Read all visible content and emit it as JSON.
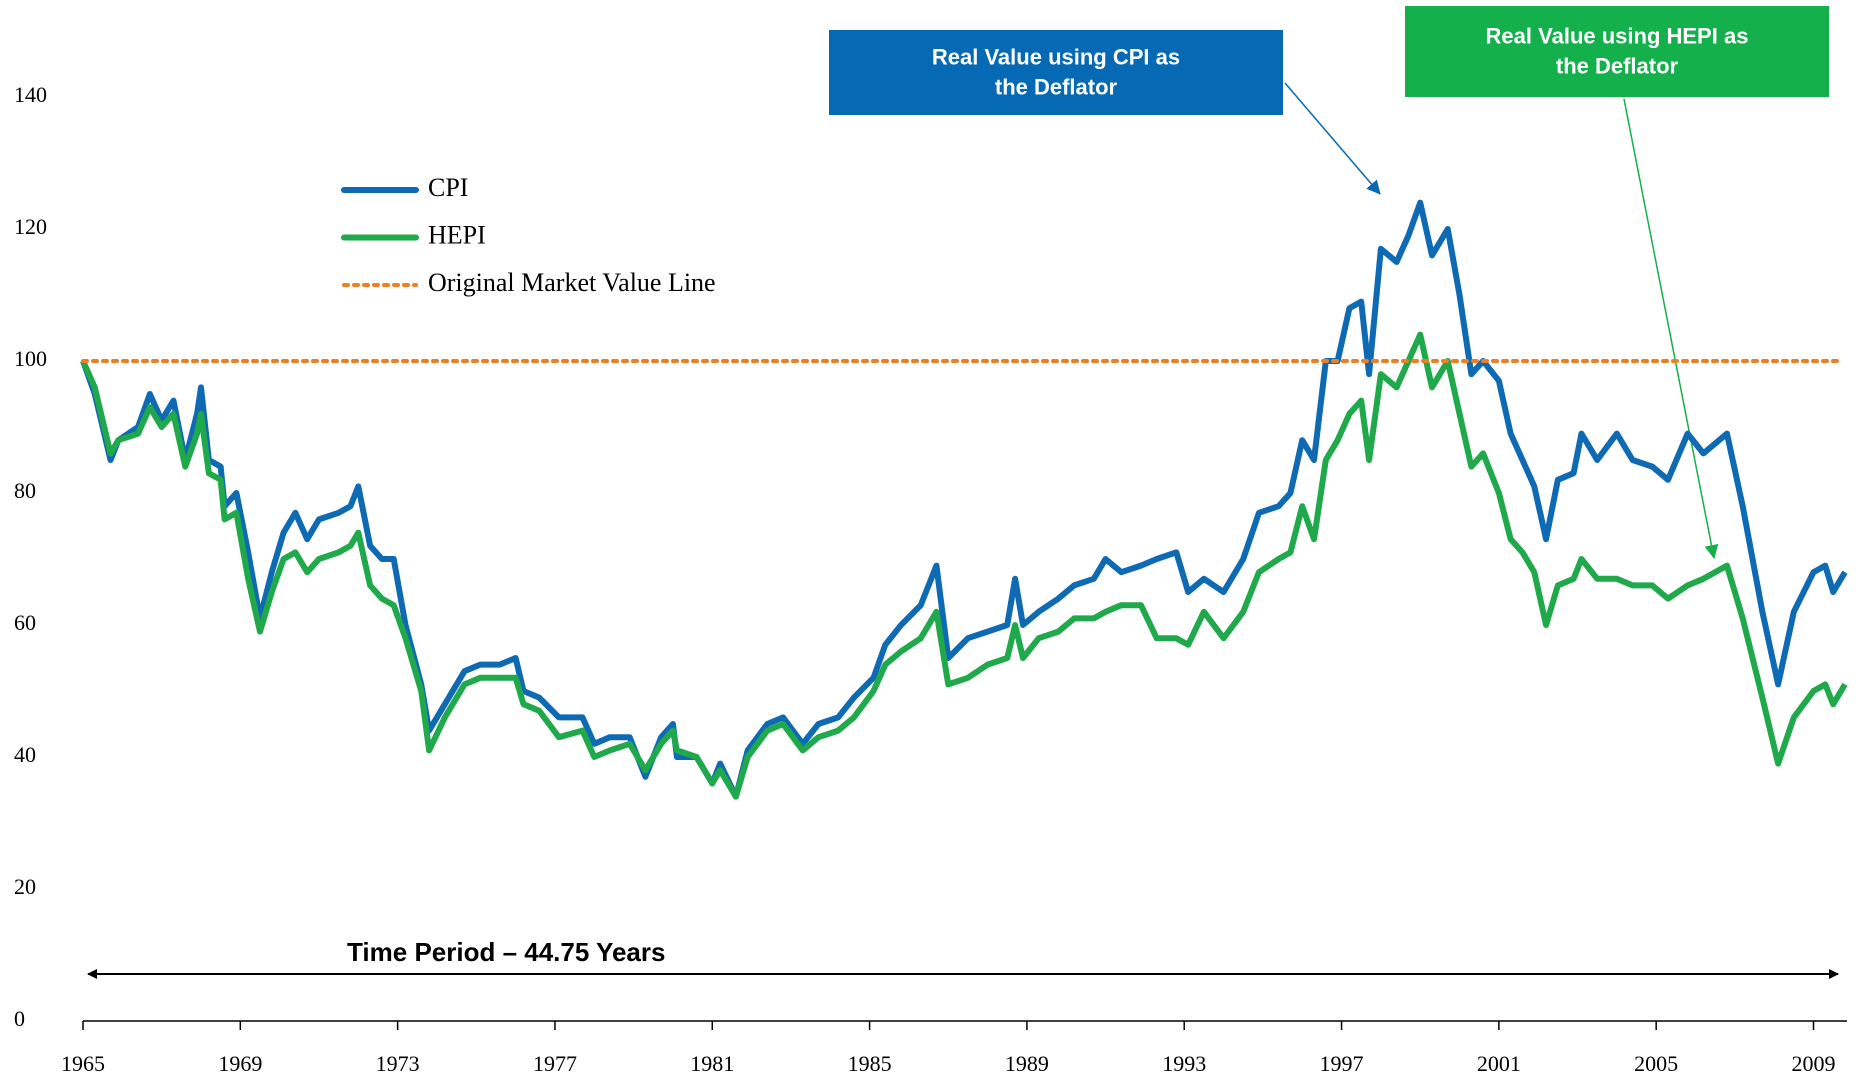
{
  "chart_data": {
    "type": "line",
    "x": [
      1965.0,
      1965.3,
      1965.7,
      1965.9,
      1966.4,
      1966.7,
      1967.0,
      1967.3,
      1967.6,
      1967.9,
      1968.0,
      1968.2,
      1968.5,
      1968.6,
      1968.9,
      1969.2,
      1969.5,
      1969.8,
      1970.1,
      1970.4,
      1970.7,
      1971.0,
      1971.5,
      1971.8,
      1972.0,
      1972.3,
      1972.6,
      1972.9,
      1973.2,
      1973.6,
      1973.8,
      1974.2,
      1974.7,
      1975.1,
      1975.6,
      1976.0,
      1976.2,
      1976.6,
      1977.1,
      1977.7,
      1978.0,
      1978.4,
      1978.9,
      1979.3,
      1979.7,
      1980.0,
      1980.1,
      1980.6,
      1981.0,
      1981.2,
      1981.6,
      1981.9,
      1982.4,
      1982.8,
      1983.3,
      1983.7,
      1984.2,
      1984.6,
      1985.1,
      1985.4,
      1985.8,
      1986.3,
      1986.7,
      1987.0,
      1987.5,
      1988.0,
      1988.5,
      1988.7,
      1988.9,
      1989.3,
      1989.8,
      1990.2,
      1990.7,
      1991.0,
      1991.4,
      1991.9,
      1992.3,
      1992.8,
      1993.1,
      1993.5,
      1994.0,
      1994.5,
      1994.9,
      1995.4,
      1995.7,
      1996.0,
      1996.3,
      1996.6,
      1996.9,
      1997.2,
      1997.5,
      1997.7,
      1998.0,
      1998.4,
      1998.7,
      1999.0,
      1999.3,
      1999.7,
      2000.0,
      2000.3,
      2000.6,
      2001.0,
      2001.3,
      2001.6,
      2001.9,
      2002.2,
      2002.5,
      2002.9,
      2003.1,
      2003.5,
      2004.0,
      2004.4,
      2004.9,
      2005.3,
      2005.8,
      2006.2,
      2006.8,
      2007.2,
      2007.7,
      2008.1,
      2008.5,
      2009.0,
      2009.3,
      2009.5,
      2009.8
    ],
    "series": [
      {
        "name": "CPI",
        "color": "#0f6ab4",
        "values": [
          100,
          95,
          85,
          88,
          90,
          95,
          91,
          94,
          85,
          92,
          96,
          85,
          84,
          78,
          80,
          71,
          61,
          68,
          74,
          77,
          73,
          76,
          77,
          78,
          81,
          72,
          70,
          70,
          60,
          51,
          44,
          48,
          53,
          54,
          54,
          55,
          50,
          49,
          46,
          46,
          42,
          43,
          43,
          37,
          43,
          45,
          40,
          40,
          36,
          39,
          34,
          41,
          45,
          46,
          42,
          45,
          46,
          49,
          52,
          57,
          60,
          63,
          69,
          55,
          58,
          59,
          60,
          67,
          60,
          62,
          64,
          66,
          67,
          70,
          68,
          69,
          70,
          71,
          65,
          67,
          65,
          70,
          77,
          78,
          80,
          88,
          85,
          100,
          100,
          108,
          109,
          98,
          117,
          115,
          119,
          124,
          116,
          120,
          110,
          98,
          100,
          97,
          89,
          85,
          81,
          73,
          82,
          83,
          89,
          85,
          89,
          85,
          84,
          82,
          89,
          86,
          89,
          78,
          62,
          51,
          62,
          68,
          69,
          65,
          68
        ]
      },
      {
        "name": "HEPI",
        "color": "#1fa94b",
        "values": [
          100,
          96,
          86,
          88,
          89,
          93,
          90,
          92,
          84,
          89,
          92,
          83,
          82,
          76,
          77,
          67,
          59,
          65,
          70,
          71,
          68,
          70,
          71,
          72,
          74,
          66,
          64,
          63,
          58,
          50,
          41,
          46,
          51,
          52,
          52,
          52,
          48,
          47,
          43,
          44,
          40,
          41,
          42,
          38,
          42,
          44,
          41,
          40,
          36,
          38,
          34,
          40,
          44,
          45,
          41,
          43,
          44,
          46,
          50,
          54,
          56,
          58,
          62,
          51,
          52,
          54,
          55,
          60,
          55,
          58,
          59,
          61,
          61,
          62,
          63,
          63,
          58,
          58,
          57,
          62,
          58,
          62,
          68,
          70,
          71,
          78,
          73,
          85,
          88,
          92,
          94,
          85,
          98,
          96,
          100,
          104,
          96,
          100,
          92,
          84,
          86,
          80,
          73,
          71,
          68,
          60,
          66,
          67,
          70,
          67,
          67,
          66,
          66,
          64,
          66,
          67,
          69,
          61,
          49,
          39,
          46,
          50,
          51,
          48,
          51
        ]
      },
      {
        "name": "Original Market Value Line",
        "color": "#f07f22",
        "style": "dotted",
        "value": 100
      }
    ],
    "xlim": [
      1965,
      2009.75
    ],
    "ylim": [
      0,
      140
    ],
    "xticks": [
      1965,
      1969,
      1973,
      1977,
      1981,
      1985,
      1989,
      1993,
      1997,
      2001,
      2005,
      2009
    ],
    "yticks": [
      0,
      20,
      40,
      60,
      80,
      100,
      120,
      140
    ],
    "grid": false,
    "annotations": [
      {
        "text": "Real Value using CPI as the Deflator",
        "color": "#0569b3"
      },
      {
        "text": "Real Value using HEPI as the Deflator",
        "color": "#13b04b"
      },
      {
        "text": "Time Period – 44.75 Years"
      }
    ]
  }
}
